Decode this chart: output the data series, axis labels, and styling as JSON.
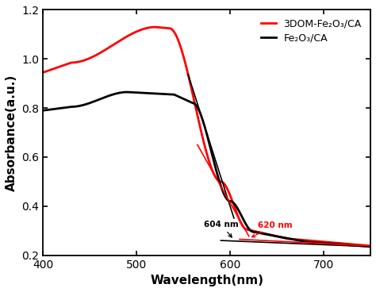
{
  "xlim": [
    400,
    750
  ],
  "ylim": [
    0.2,
    1.2
  ],
  "xticks": [
    400,
    500,
    600,
    700
  ],
  "yticks": [
    0.2,
    0.4,
    0.6,
    0.8,
    1.0,
    1.2
  ],
  "xlabel": "Wavelength(nm)",
  "ylabel": "Absorbance(a.u.)",
  "legend_red": "3DOM-Fe₂O₃/CA",
  "legend_black": "Fe₂O₃/CA",
  "red_color": "#ff0000",
  "black_color": "#000000",
  "annotation_black": "604 nm",
  "annotation_red": "620 nm",
  "bg_color": "#ffffff",
  "linewidth": 2.0,
  "tangent_linewidth": 1.2
}
